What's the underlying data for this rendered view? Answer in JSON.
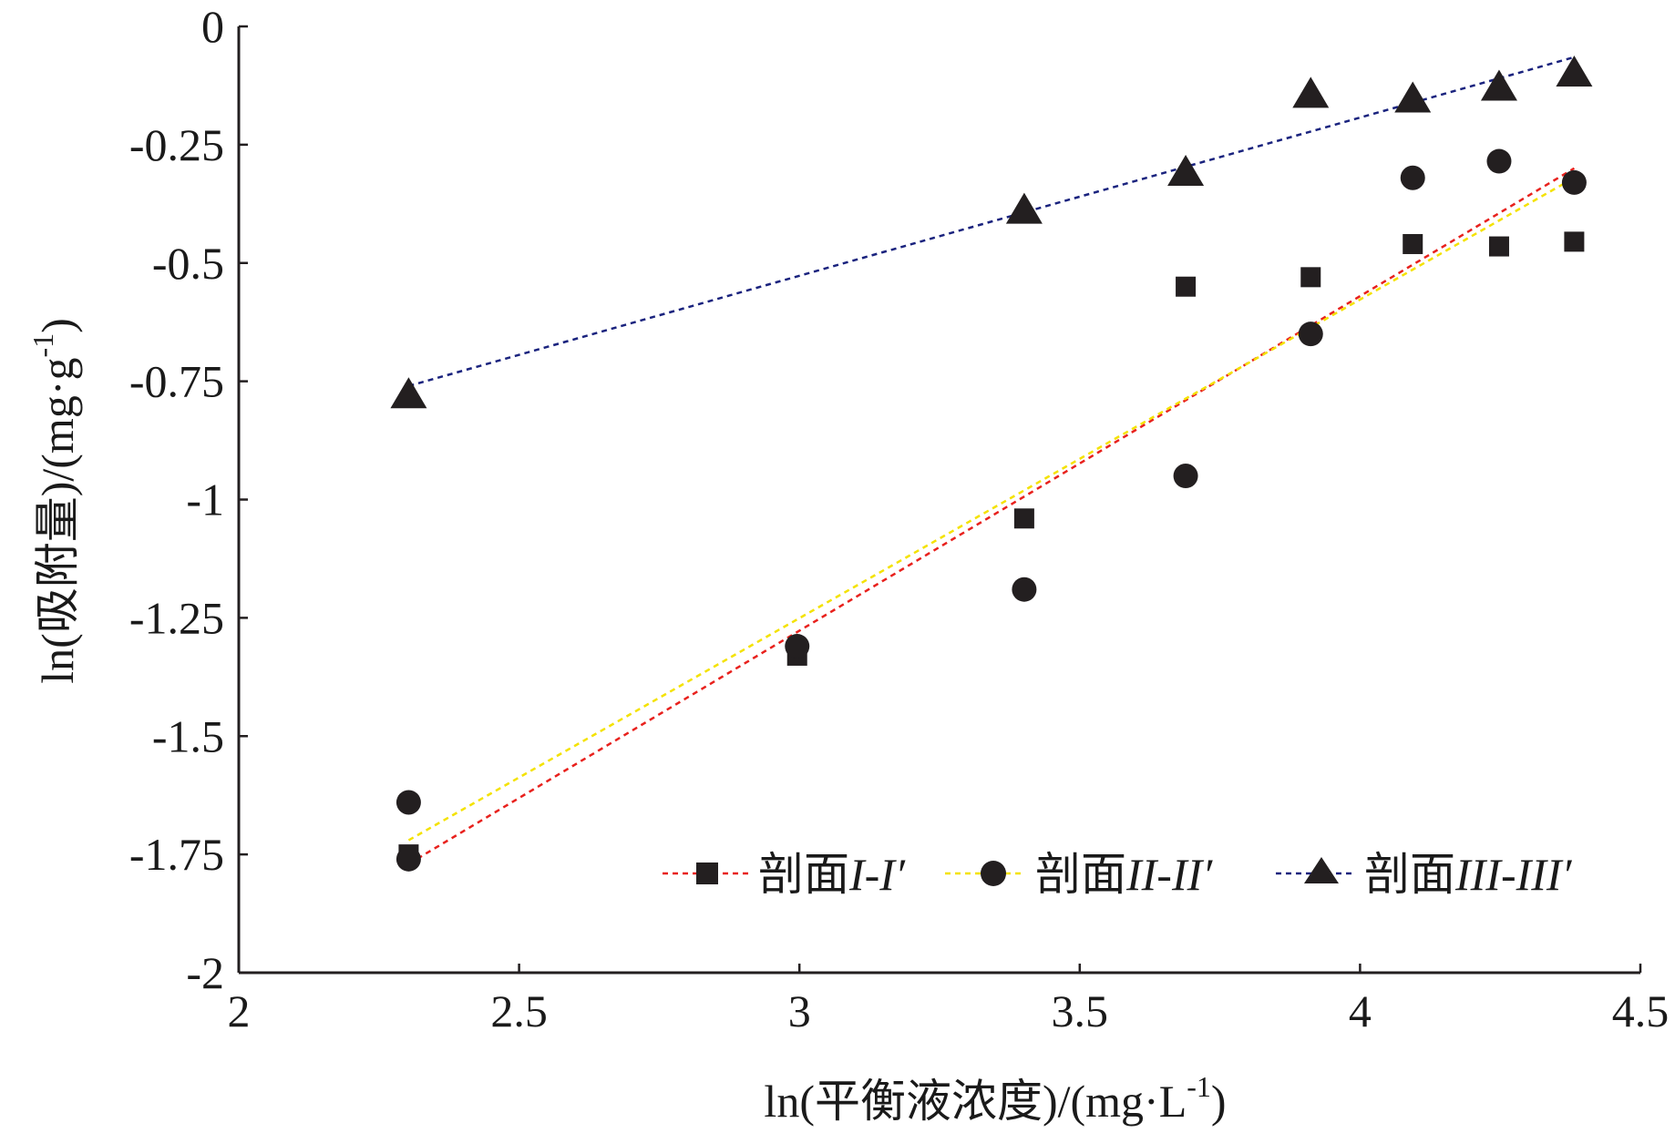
{
  "chart_data": {
    "type": "scatter",
    "xlabel_main": "ln(平衡液浓度)/(mg·L",
    "xlabel_sup": "-1",
    "xlabel_end": ")",
    "ylabel_main": "ln(吸附量)/(mg·g",
    "ylabel_sup": "-1",
    "ylabel_end": ")",
    "xlim": [
      2,
      4.5
    ],
    "ylim": [
      -2,
      0
    ],
    "x_ticks": [
      2,
      2.5,
      3,
      3.5,
      4,
      4.5
    ],
    "x_tick_labels": [
      "2",
      "2.5",
      "3",
      "3.5",
      "4",
      "4.5"
    ],
    "y_ticks": [
      0,
      -0.25,
      -0.5,
      -0.75,
      -1,
      -1.25,
      -1.5,
      -1.75,
      -2
    ],
    "y_tick_labels": [
      "0",
      "-0.25",
      "-0.5",
      "-0.75",
      "-1",
      "-1.25",
      "-1.5",
      "-1.75",
      "-2"
    ],
    "grid": false,
    "legend_position": "bottom-right",
    "series": [
      {
        "name_prefix": "剖面",
        "name_italic": "I-I′",
        "marker": "square",
        "marker_color": "#231f20",
        "trend_color": "#e8211d",
        "x": [
          2.303,
          2.996,
          3.401,
          3.689,
          3.912,
          4.094,
          4.248,
          4.382
        ],
        "y": [
          -1.75,
          -1.33,
          -1.04,
          -0.55,
          -0.53,
          -0.46,
          -0.465,
          -0.455
        ],
        "trend": {
          "x": [
            2.303,
            4.382
          ],
          "y": [
            -1.77,
            -0.3
          ]
        }
      },
      {
        "name_prefix": "剖面",
        "name_italic": "II-II′",
        "marker": "circle",
        "marker_color": "#231f20",
        "trend_color": "#f4e200",
        "x": [
          2.303,
          2.303,
          2.996,
          3.401,
          3.689,
          3.912,
          4.094,
          4.248,
          4.382
        ],
        "y": [
          -1.64,
          -1.76,
          -1.31,
          -1.19,
          -0.95,
          -0.65,
          -0.32,
          -0.285,
          -0.33
        ],
        "trend": {
          "x": [
            2.303,
            4.382
          ],
          "y": [
            -1.72,
            -0.32
          ]
        }
      },
      {
        "name_prefix": "剖面",
        "name_italic": "III-III′",
        "marker": "triangle",
        "marker_color": "#231f20",
        "trend_color": "#1a237e",
        "x": [
          2.303,
          3.401,
          3.689,
          3.912,
          4.094,
          4.248,
          4.382
        ],
        "y": [
          -0.78,
          -0.39,
          -0.31,
          -0.145,
          -0.155,
          -0.13,
          -0.1
        ],
        "trend": {
          "x": [
            2.303,
            4.382
          ],
          "y": [
            -0.76,
            -0.065
          ]
        }
      }
    ]
  }
}
